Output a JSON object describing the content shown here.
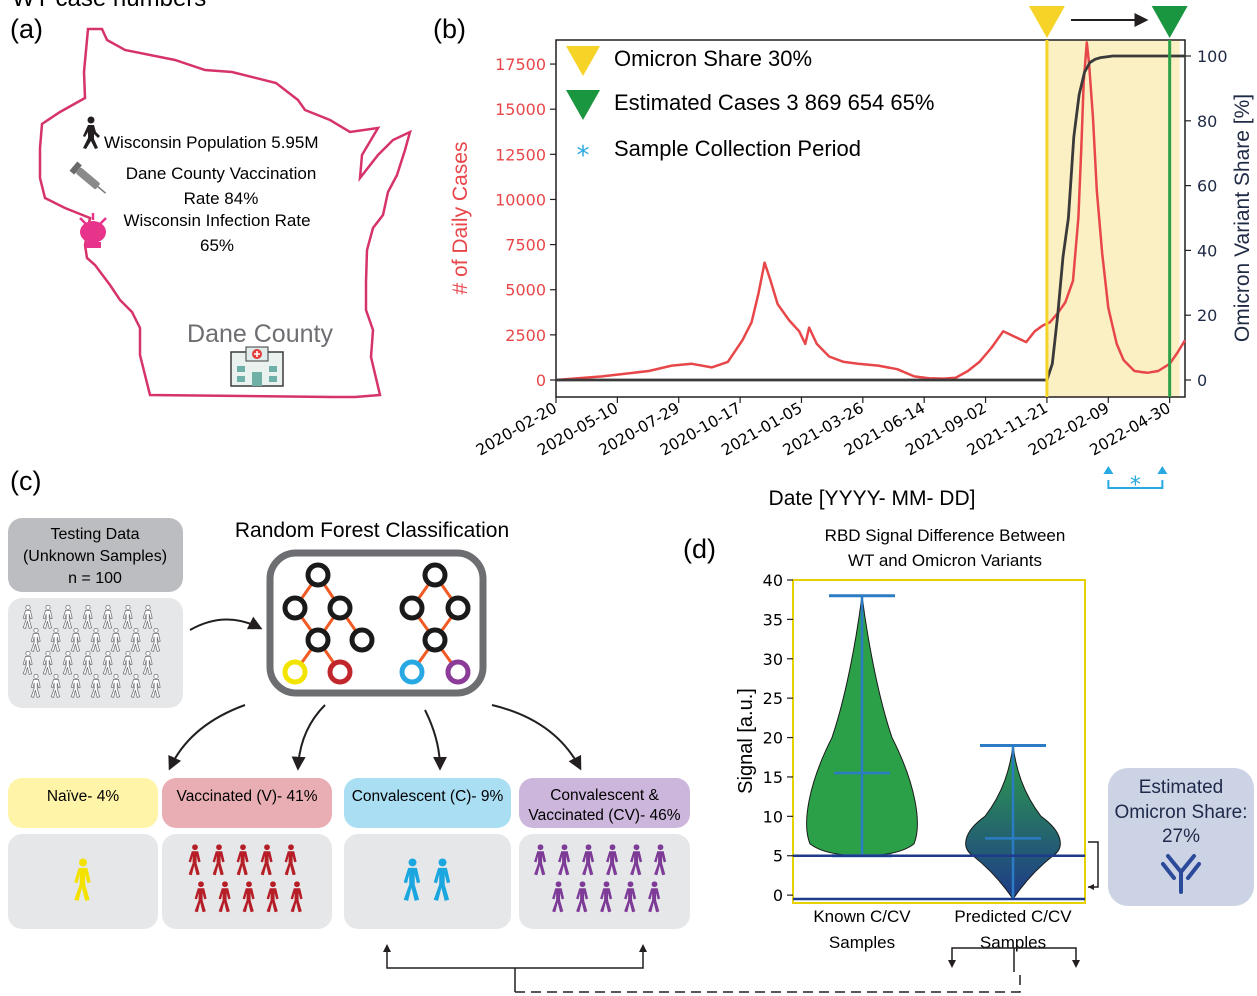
{
  "panels": {
    "a": "(a)",
    "b": "(b)",
    "c": "(c)",
    "d": "(d)"
  },
  "top_clipped_text": "WT case numbers",
  "map": {
    "population": "Wisconsin Population 5.95M",
    "vaccination": [
      "Dane County Vaccination",
      "Rate 84%"
    ],
    "infection": [
      "Wisconsin Infection Rate",
      "65%"
    ],
    "county": "Dane County",
    "colors": {
      "outline": "#d6336c"
    },
    "icons": [
      "walking-person-icon",
      "syringe-icon",
      "virus-icon",
      "hospital-icon"
    ]
  },
  "chart_data": [
    {
      "type": "line",
      "xlabel": "Date [YYYY- MM- DD]",
      "ylabel_left": "# of Daily Cases",
      "ylabel_right": "Omicron Variant Share [%]",
      "x_ticks": [
        "2020-02-20",
        "2020-05-10",
        "2020-07-29",
        "2020-10-17",
        "2021-01-05",
        "2021-03-26",
        "2021-06-14",
        "2021-09-02",
        "2021-11-21",
        "2022-02-09",
        "2022-04-30"
      ],
      "xlim": [
        "2020-02-20",
        "2022-05-20"
      ],
      "ylim_left": [
        0,
        18500
      ],
      "yticks_left": [
        0,
        2500,
        5000,
        7500,
        10000,
        12500,
        15000,
        17500
      ],
      "ylim_right": [
        0,
        100
      ],
      "yticks_right": [
        0,
        20,
        40,
        60,
        80,
        100
      ],
      "shaded_region": [
        "2021-11-21",
        "2022-04-30"
      ],
      "vlines": [
        {
          "date": "2021-11-21",
          "color": "#f5d327"
        },
        {
          "date": "2022-04-30",
          "color": "#2ca048"
        }
      ],
      "legend": [
        {
          "label": "Omicron Share 30%",
          "marker": "triangle-down",
          "color": "#f5d327"
        },
        {
          "label": "Estimated Cases 3 869 654  65%",
          "marker": "triangle-down",
          "color": "#1a9641"
        },
        {
          "label": "Sample Collection Period",
          "marker": "asterisk",
          "color": "#29a9e1"
        }
      ],
      "legend_position": "top-left",
      "series": [
        {
          "axis": "left",
          "color": "#e8474a",
          "x": [
            "2020-02-20",
            "2020-03-20",
            "2020-04-20",
            "2020-05-20",
            "2020-06-20",
            "2020-07-20",
            "2020-08-15",
            "2020-09-10",
            "2020-10-01",
            "2020-10-20",
            "2020-11-01",
            "2020-11-10",
            "2020-11-18",
            "2020-11-25",
            "2020-12-05",
            "2020-12-20",
            "2021-01-02",
            "2021-01-10",
            "2021-01-15",
            "2021-01-25",
            "2021-02-10",
            "2021-03-01",
            "2021-03-20",
            "2021-04-15",
            "2021-05-10",
            "2021-06-01",
            "2021-06-20",
            "2021-07-10",
            "2021-07-25",
            "2021-08-10",
            "2021-08-25",
            "2021-09-10",
            "2021-09-25",
            "2021-10-10",
            "2021-10-25",
            "2021-11-05",
            "2021-11-15",
            "2021-11-25",
            "2021-12-05",
            "2021-12-15",
            "2021-12-25",
            "2022-01-01",
            "2022-01-05",
            "2022-01-08",
            "2022-01-12",
            "2022-01-15",
            "2022-01-20",
            "2022-01-25",
            "2022-02-01",
            "2022-02-09",
            "2022-02-20",
            "2022-03-01",
            "2022-03-15",
            "2022-04-01",
            "2022-04-15",
            "2022-04-30",
            "2022-05-10",
            "2022-05-20"
          ],
          "y": [
            0,
            100,
            200,
            350,
            500,
            800,
            900,
            700,
            1000,
            2200,
            3200,
            4800,
            6500,
            5600,
            4200,
            3300,
            2700,
            2000,
            2900,
            2000,
            1300,
            1000,
            900,
            800,
            600,
            200,
            100,
            80,
            120,
            500,
            1000,
            1800,
            2700,
            2400,
            2100,
            2700,
            3000,
            3200,
            3700,
            4300,
            5500,
            9000,
            13000,
            16500,
            18700,
            17500,
            14500,
            10500,
            7000,
            4000,
            2000,
            1100,
            500,
            400,
            500,
            900,
            1500,
            2200
          ]
        },
        {
          "axis": "right",
          "color": "#3a3a3a",
          "x": [
            "2020-02-20",
            "2021-11-21",
            "2021-11-28",
            "2021-12-05",
            "2021-12-12",
            "2021-12-19",
            "2021-12-26",
            "2022-01-02",
            "2022-01-09",
            "2022-01-16",
            "2022-01-23",
            "2022-01-30",
            "2022-02-15",
            "2022-05-20"
          ],
          "y": [
            0,
            0,
            5,
            20,
            38,
            50,
            75,
            88,
            95,
            98,
            99,
            99.5,
            100,
            100
          ]
        }
      ],
      "sample_marker": "*"
    },
    {
      "type": "violin",
      "title": "RBD Signal Difference Between WT and Omicron Variants",
      "ylabel": "Signal [a.u.]",
      "ylim": [
        -1,
        40
      ],
      "yticks": [
        0,
        5,
        10,
        15,
        20,
        25,
        30,
        35,
        40
      ],
      "categories": [
        "Known C/CV Samples",
        "Predicted C/CV Samples"
      ],
      "series": [
        {
          "min": 5,
          "max": 38,
          "mean": 15.5
        },
        {
          "min": -0.5,
          "max": 19,
          "mean": 7.2
        }
      ],
      "hlines": [
        5,
        -0.5
      ],
      "colors": {
        "fill": "#2ca048",
        "stat": "#2b7cc4",
        "line": "#1f3a8a",
        "frame": "#e6d200"
      }
    }
  ],
  "classification": {
    "title": "Random Forest Classification",
    "testing": [
      "Testing Data",
      "(Unknown Samples)",
      "n = 100"
    ],
    "groups": [
      {
        "label": "Naïve- 4%",
        "color": "#fff4a8",
        "figure_color": "#f3e200",
        "count": 1
      },
      {
        "label": "Vaccinated (V)- 41%",
        "color": "#e9aeb3",
        "figure_color": "#b51d27",
        "count": 10
      },
      {
        "label": "Convalescent (C)- 9%",
        "color": "#a9def3",
        "figure_color": "#1aa7e0",
        "count": 2
      },
      {
        "label": "Convalescent &",
        "label2": "Vaccinated (CV)- 46%",
        "color": "#cdb6dc",
        "figure_color": "#7d3a96",
        "count": 11
      }
    ],
    "leaf_colors": [
      "#f2e300",
      "#c0272d",
      "#29a9e1",
      "#8a3c98"
    ]
  },
  "estimate": {
    "lines": [
      "Estimated",
      "Omicron Share:",
      "27%"
    ],
    "color": "#ccd3e5",
    "icon": "antibody-icon"
  }
}
